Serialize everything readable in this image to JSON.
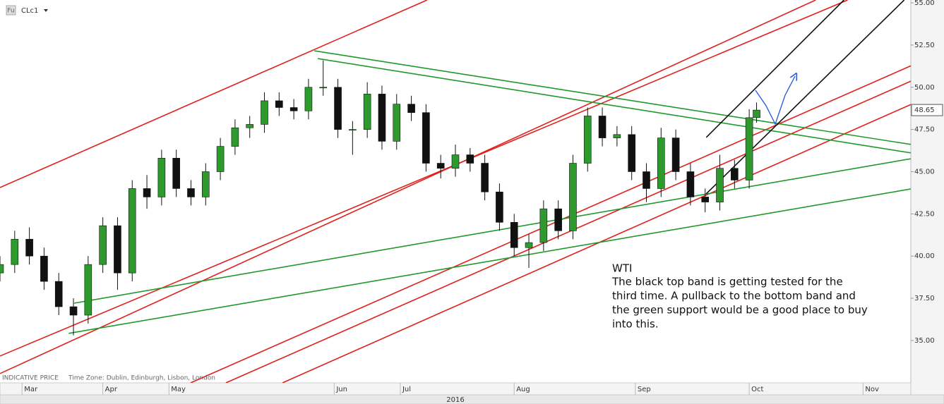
{
  "chart_data": {
    "type": "candlestick",
    "icon_label": "Fu",
    "symbol": "CLc1",
    "up_color": "#2e9a2e",
    "down_color": "#111111",
    "x": [
      0,
      4,
      8,
      12,
      16,
      20,
      24,
      28,
      32,
      36,
      40,
      44,
      48,
      52,
      56,
      60,
      64,
      68,
      72,
      76,
      80,
      84,
      88,
      92,
      96,
      100,
      104,
      108,
      112,
      116,
      120,
      124,
      128,
      132,
      136,
      140,
      144,
      148,
      152,
      156,
      160,
      164,
      168,
      172,
      176,
      180,
      184,
      188,
      192,
      196,
      200,
      204,
      206
    ],
    "open": [
      39.0,
      39.5,
      41.0,
      40.0,
      38.5,
      37.0,
      36.5,
      39.5,
      41.8,
      39.0,
      44.0,
      43.5,
      45.8,
      44.0,
      43.5,
      45.0,
      46.5,
      47.6,
      47.8,
      49.2,
      48.8,
      48.6,
      50.0,
      50.0,
      47.5,
      47.5,
      49.6,
      46.8,
      49.0,
      48.5,
      45.5,
      45.2,
      46.0,
      45.5,
      43.8,
      42.0,
      40.5,
      40.8,
      42.8,
      41.5,
      45.5,
      48.3,
      47.0,
      47.2,
      45.0,
      44.0,
      47.0,
      45.0,
      43.5,
      43.2,
      45.2,
      44.5,
      48.2
    ],
    "high": [
      40.0,
      41.5,
      41.7,
      40.5,
      39.0,
      37.5,
      40.0,
      42.3,
      42.3,
      44.5,
      44.8,
      46.3,
      46.3,
      44.5,
      45.5,
      47.0,
      48.1,
      48.3,
      49.7,
      49.7,
      49.3,
      50.5,
      51.6,
      50.5,
      48.0,
      50.3,
      50.1,
      49.6,
      49.5,
      49.0,
      46.0,
      46.6,
      46.4,
      46.0,
      44.3,
      42.5,
      41.3,
      43.3,
      43.3,
      46.0,
      48.8,
      48.8,
      47.7,
      47.7,
      45.5,
      47.6,
      47.5,
      45.5,
      44.0,
      46.0,
      45.7,
      48.7,
      49.1
    ],
    "low": [
      38.5,
      39.0,
      39.5,
      38.0,
      36.5,
      35.3,
      36.0,
      39.0,
      38.0,
      38.5,
      42.8,
      43.0,
      43.5,
      43.0,
      43.0,
      44.5,
      46.0,
      47.0,
      47.3,
      48.3,
      48.1,
      48.1,
      49.5,
      47.0,
      46.0,
      47.0,
      46.3,
      46.3,
      48.0,
      45.0,
      44.6,
      44.7,
      45.0,
      43.3,
      41.5,
      40.0,
      39.3,
      40.3,
      41.0,
      41.0,
      45.0,
      46.5,
      46.5,
      44.5,
      43.2,
      43.5,
      44.5,
      43.0,
      42.6,
      42.7,
      44.0,
      44.0,
      47.9
    ],
    "close": [
      39.5,
      41.0,
      40.0,
      38.5,
      37.0,
      36.5,
      39.5,
      41.8,
      39.0,
      44.0,
      43.5,
      45.8,
      44.0,
      43.5,
      45.0,
      46.5,
      47.6,
      47.8,
      49.2,
      48.8,
      48.6,
      50.0,
      50.0,
      47.5,
      47.5,
      49.6,
      46.8,
      49.0,
      48.5,
      45.5,
      45.2,
      46.0,
      45.5,
      43.8,
      42.0,
      40.5,
      40.8,
      42.8,
      41.5,
      45.5,
      48.3,
      47.0,
      47.2,
      45.0,
      44.0,
      47.0,
      45.0,
      43.5,
      43.2,
      45.2,
      44.5,
      48.2,
      48.65
    ],
    "xlim": [
      0,
      248
    ],
    "xticks": [
      {
        "value": 6,
        "label": "Mar"
      },
      {
        "value": 28,
        "label": "Apr"
      },
      {
        "value": 46,
        "label": "May"
      },
      {
        "value": 91,
        "label": "Jun"
      },
      {
        "value": 109,
        "label": "Jul"
      },
      {
        "value": 140,
        "label": "Aug"
      },
      {
        "value": 173,
        "label": "Sep"
      },
      {
        "value": 204,
        "label": "Oct"
      },
      {
        "value": 235,
        "label": "Nov"
      }
    ],
    "x_axis_label": "2016",
    "ylim": [
      32.49,
      55.17
    ],
    "yticks": [
      {
        "value": 35,
        "label": "35.00"
      },
      {
        "value": 37.5,
        "label": "37.50"
      },
      {
        "value": 40,
        "label": "40.00"
      },
      {
        "value": 42.5,
        "label": "42.50"
      },
      {
        "value": 45,
        "label": "45.00"
      },
      {
        "value": 47.5,
        "label": "47.50"
      },
      {
        "value": 50,
        "label": "50.00"
      },
      {
        "value": 52.5,
        "label": "52.50"
      },
      {
        "value": 55,
        "label": "55.00"
      }
    ],
    "trendlines": [
      {
        "color": "#e0201b",
        "x": [
          0,
          116.3
        ],
        "y": [
          44.06,
          55.17
        ]
      },
      {
        "color": "#e0201b",
        "x": [
          0,
          230.8
        ],
        "y": [
          34.08,
          55.17
        ]
      },
      {
        "color": "#e0201b",
        "x": [
          0,
          222.1
        ],
        "y": [
          33.04,
          55.17
        ]
      },
      {
        "color": "#e0201b",
        "x": [
          51.9,
          248.1
        ],
        "y": [
          32.49,
          51.28
        ]
      },
      {
        "color": "#e0201b",
        "x": [
          61.5,
          248.1
        ],
        "y": [
          32.49,
          50.37
        ]
      },
      {
        "color": "#e0201b",
        "x": [
          76.9,
          248.1
        ],
        "y": [
          32.49,
          48.99
        ]
      },
      {
        "color": "#1f9a2a",
        "x": [
          85.6,
          248.1
        ],
        "y": [
          52.16,
          46.61
        ]
      },
      {
        "color": "#1f9a2a",
        "x": [
          86.5,
          248.1
        ],
        "y": [
          51.7,
          46.11
        ]
      },
      {
        "color": "#1f9a2a",
        "x": [
          20.2,
          248.1
        ],
        "y": [
          37.21,
          45.77
        ]
      },
      {
        "color": "#1f9a2a",
        "x": [
          18.7,
          248.1
        ],
        "y": [
          35.42,
          43.98
        ]
      },
      {
        "color": "#111111",
        "x": [
          192.3,
          229.8
        ],
        "y": [
          47.03,
          55.17
        ]
      },
      {
        "color": "#111111",
        "x": [
          192.3,
          246.2
        ],
        "y": [
          43.69,
          55.17
        ]
      }
    ],
    "footer": {
      "price_type": "INDICATIVE PRICE",
      "timezone": "Time Zone: Dublin, Edinburgh, Lisbon, London"
    },
    "annotation": {
      "title": "WTI",
      "lines": [
        "The black top band is getting tested for the",
        "third time. A pullback to the bottom band and",
        "the green support would be a good place to buy",
        "into this."
      ]
    }
  }
}
